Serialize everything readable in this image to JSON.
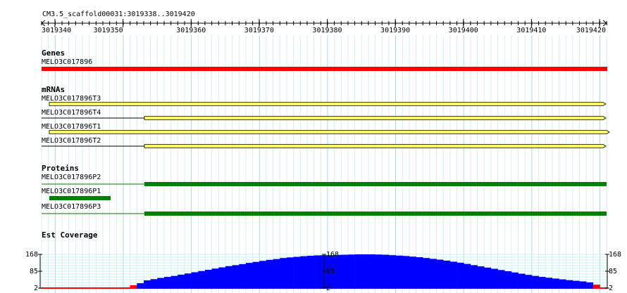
{
  "ruler": {
    "title": "CM3.5_scaffold00031:3019338..3019420",
    "ticks": [
      3019340,
      3019350,
      3019360,
      3019370,
      3019380,
      3019390,
      3019400,
      3019410,
      3019420
    ]
  },
  "genes": {
    "title": "Genes",
    "features": [
      "MELO3C017896"
    ]
  },
  "mrnas": {
    "title": "mRNAs",
    "features": [
      "MELO3C017896T3",
      "MELO3C017896T4",
      "MELO3C017896T1",
      "MELO3C017896T2"
    ]
  },
  "proteins": {
    "title": "Proteins",
    "features": [
      "MELO3C017896P2",
      "MELO3C017896P1",
      "MELO3C017896P3"
    ]
  },
  "coverage": {
    "title": "Est Coverage",
    "yticks": [
      2,
      85,
      168
    ],
    "values": [
      2,
      2,
      2,
      2,
      2,
      2,
      2,
      2,
      2,
      2,
      2,
      2,
      2,
      16,
      26,
      40,
      46,
      52,
      57,
      62,
      68,
      74,
      80,
      86,
      92,
      98,
      104,
      110,
      115,
      120,
      126,
      131,
      136,
      141,
      145,
      150,
      153,
      156,
      159,
      161,
      163,
      164,
      164,
      165,
      166,
      167,
      168,
      168,
      168,
      167,
      166,
      164,
      162,
      160,
      157,
      154,
      150,
      146,
      142,
      137,
      132,
      127,
      121,
      115,
      109,
      103,
      97,
      91,
      85,
      79,
      73,
      67,
      62,
      57,
      53,
      49,
      45,
      41,
      38,
      35,
      30,
      19,
      2
    ]
  }
}
